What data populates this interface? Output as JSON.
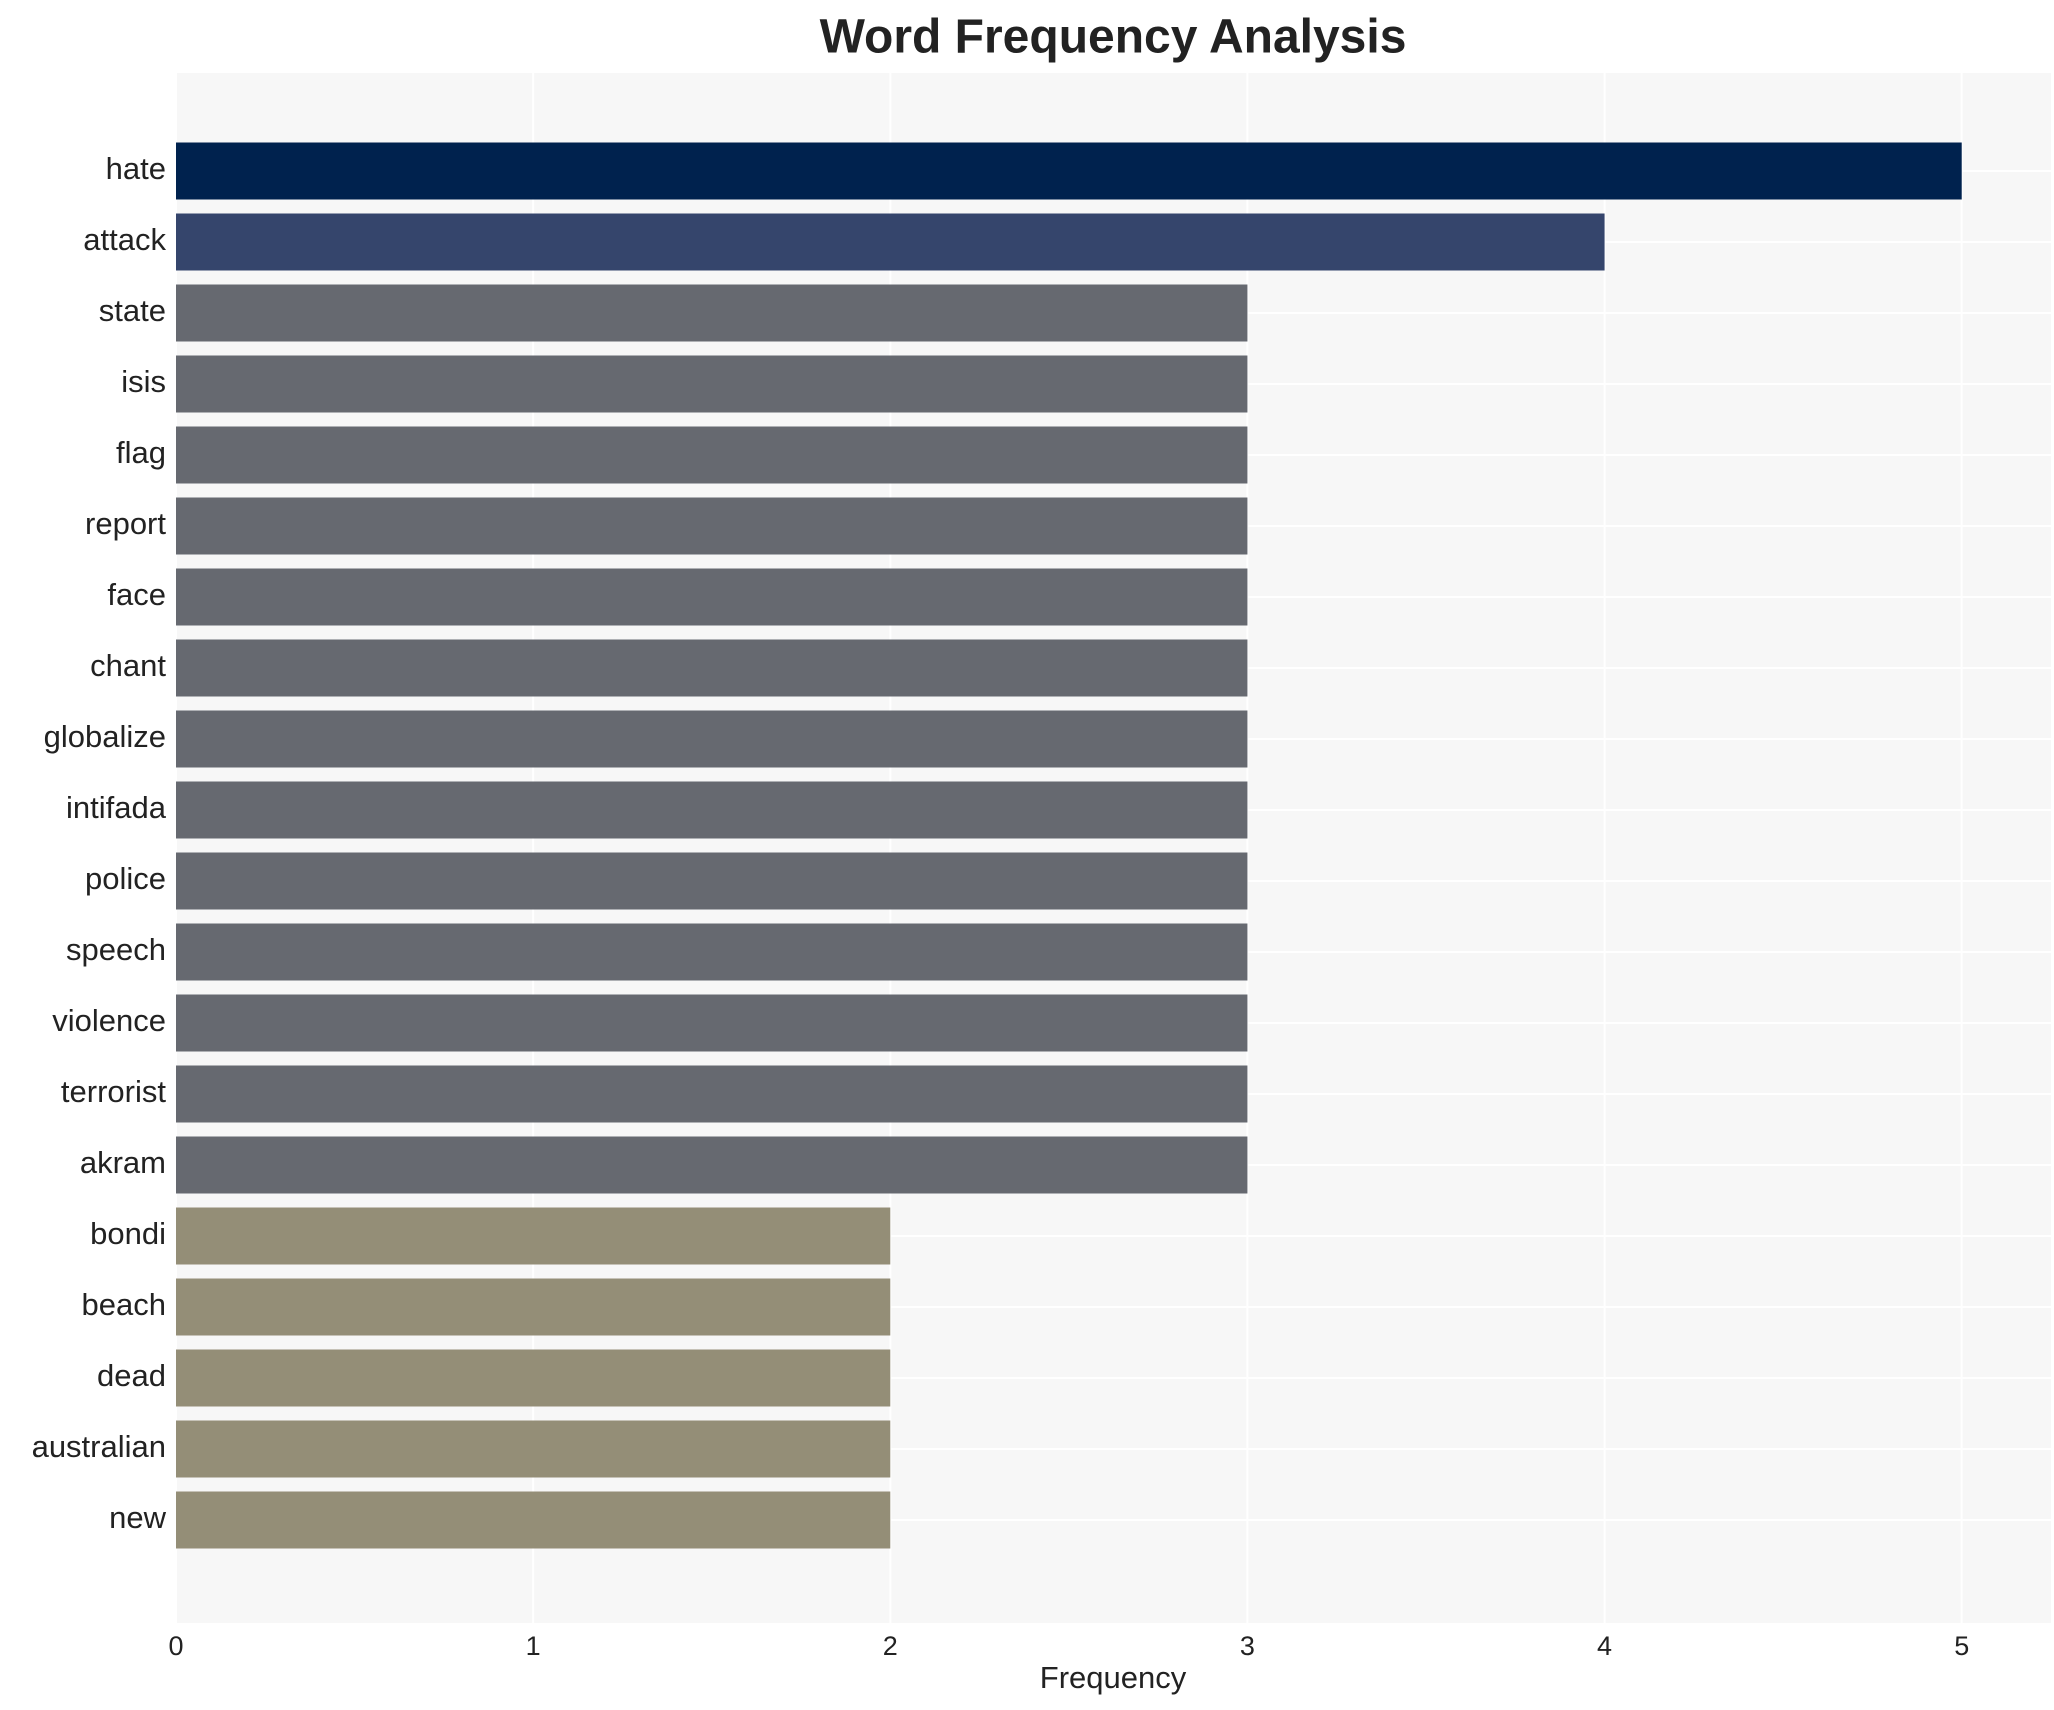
{
  "chart_data": {
    "type": "bar",
    "orientation": "horizontal",
    "title": "Word Frequency Analysis",
    "x_label": "Frequency",
    "categories": [
      "hate",
      "attack",
      "state",
      "isis",
      "flag",
      "report",
      "face",
      "chant",
      "globalize",
      "intifada",
      "police",
      "speech",
      "violence",
      "terrorist",
      "akram",
      "bondi",
      "beach",
      "dead",
      "australian",
      "new"
    ],
    "values": [
      5,
      4,
      3,
      3,
      3,
      3,
      3,
      3,
      3,
      3,
      3,
      3,
      3,
      3,
      3,
      2,
      2,
      2,
      2,
      2
    ],
    "colors": [
      "#00224e",
      "#35456c",
      "#666970",
      "#666970",
      "#666970",
      "#666970",
      "#666970",
      "#666970",
      "#666970",
      "#666970",
      "#666970",
      "#666970",
      "#666970",
      "#666970",
      "#666970",
      "#948e77",
      "#948e77",
      "#948e77",
      "#948e77",
      "#948e77"
    ],
    "xlim": [
      0,
      5.25
    ],
    "xticks": [
      0,
      1,
      2,
      3,
      4,
      5
    ],
    "grid": true
  }
}
